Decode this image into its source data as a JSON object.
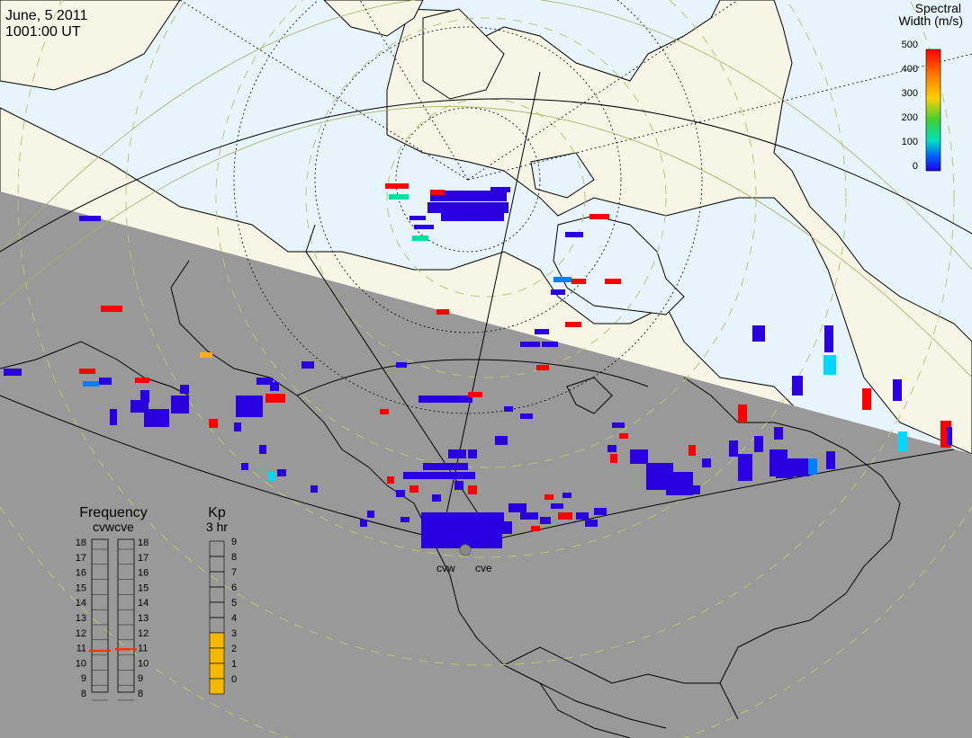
{
  "header": {
    "date": "June, 5 2011",
    "time": "1001:00 UT"
  },
  "colorbar": {
    "title_line1": "Spectral",
    "title_line2": "Width (m/s)",
    "ticks": [
      "500",
      "400",
      "300",
      "200",
      "100",
      "0"
    ],
    "colors": [
      "#ff0000",
      "#ff7f00",
      "#ffd000",
      "#3fd030",
      "#00e0c0",
      "#0060ff",
      "#2000e0"
    ]
  },
  "frequency_panel": {
    "title": "Frequency",
    "subtitle": "cvwcve",
    "ticks": [
      "18",
      "17",
      "16",
      "15",
      "14",
      "13",
      "12",
      "11",
      "10",
      "9",
      "8"
    ],
    "cvw_mhz": 10.8,
    "cve_mhz": 10.9,
    "marker_color": "#e04000"
  },
  "kp_panel": {
    "title": "Kp",
    "subtitle": "3 hr",
    "ticks": [
      "9",
      "8",
      "7",
      "6",
      "5",
      "4",
      "3",
      "2",
      "1",
      "0"
    ],
    "value": 4,
    "fill_color": "#f5b800"
  },
  "radar_labels": {
    "west": "cvw",
    "east": "cve"
  },
  "map_colors": {
    "ocean_day": "#e8f4fb",
    "land_day": "#f7f5e6",
    "night": "#999999",
    "scatter_default": "#2a00e0"
  },
  "scatter_groups": [
    {
      "name": "high-arctic-patch",
      "color": "#2a00e0"
    },
    {
      "name": "hudson-bay-patch",
      "color": "#ff0000"
    },
    {
      "name": "near-radar-fan",
      "color": "#2a00e0"
    }
  ]
}
